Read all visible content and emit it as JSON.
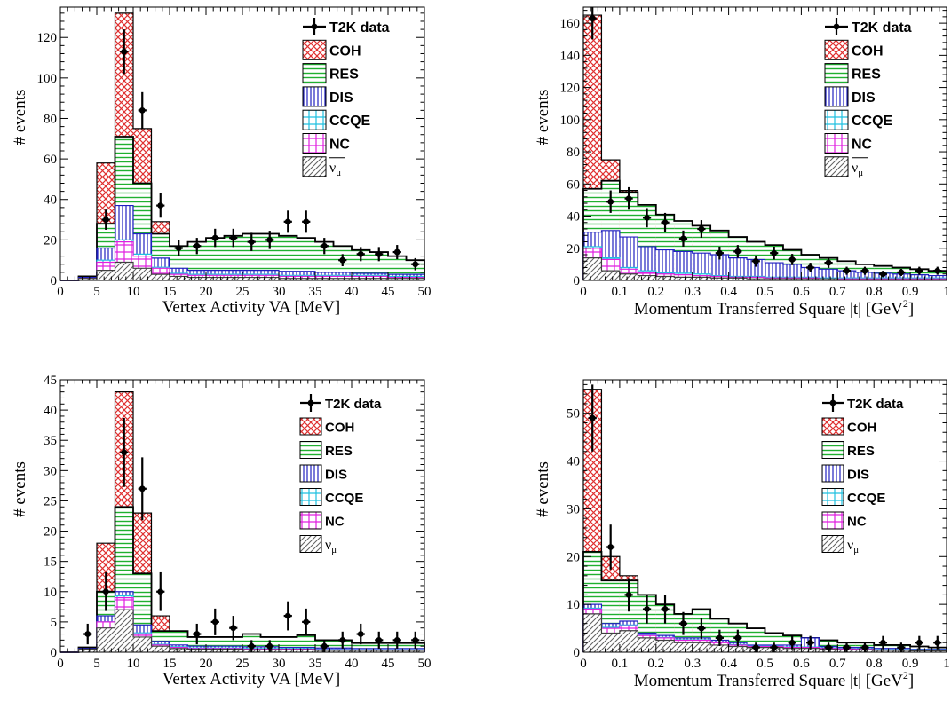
{
  "legend": {
    "data": "T2K data",
    "coh": "COH",
    "res": "RES",
    "dis": "DIS",
    "ccqe": "CCQE",
    "nc": "NC",
    "nubar": "ν̄μ",
    "nu": "νμ"
  },
  "colors": {
    "coh": "#e03030",
    "res": "#20b030",
    "dis": "#2020c0",
    "ccqe": "#20c0e0",
    "nc": "#e020e0",
    "nu": "#606060",
    "data": "#000000"
  },
  "chart_data": [
    {
      "id": "tl",
      "type": "stacked-histogram",
      "xlabel": "Vertex Activity VA [MeV]",
      "ylabel": "# events",
      "xlim": [
        0,
        50
      ],
      "ylim": [
        0,
        135
      ],
      "xticks": [
        0,
        5,
        10,
        15,
        20,
        25,
        30,
        35,
        40,
        45,
        50
      ],
      "yticks": [
        0,
        20,
        40,
        60,
        80,
        100,
        120
      ],
      "bin_edges": [
        0,
        2.5,
        5,
        7.5,
        10,
        12.5,
        15,
        17.5,
        20,
        22.5,
        25,
        27.5,
        30,
        32.5,
        35,
        37.5,
        40,
        42.5,
        45,
        47.5,
        50
      ],
      "stack_totals": {
        "nu": [
          0,
          1,
          5,
          9,
          6,
          3,
          2,
          1.5,
          1.5,
          1.5,
          1.5,
          1.5,
          1,
          1,
          1,
          1,
          1,
          1,
          1,
          1
        ],
        "nc": [
          0,
          1,
          9,
          19,
          12,
          6,
          3,
          2.5,
          2.5,
          2.5,
          2.5,
          2.5,
          2,
          2,
          2,
          2,
          2,
          2,
          1.5,
          1.5
        ],
        "ccqe": [
          0,
          1,
          10,
          20,
          13,
          6.5,
          3.5,
          3,
          3,
          3,
          3,
          3,
          2.5,
          2.5,
          2.5,
          2.5,
          2.5,
          2.5,
          2,
          2
        ],
        "dis": [
          0,
          1.5,
          16,
          37,
          23,
          11,
          6,
          5,
          5,
          5,
          5,
          5,
          4.5,
          4.5,
          4,
          4,
          3.5,
          3.5,
          3,
          3
        ],
        "res": [
          0,
          2,
          28,
          71,
          48,
          23,
          17,
          19,
          21,
          22,
          23,
          23,
          22,
          21,
          19,
          17,
          15,
          14,
          12,
          10
        ],
        "coh": [
          0,
          2,
          58,
          132,
          75,
          29,
          17,
          19,
          21,
          22,
          23,
          23,
          22,
          21,
          19,
          17,
          15,
          14,
          12,
          10
        ]
      },
      "data_points": {
        "x": [
          6.25,
          8.75,
          11.25,
          13.75,
          16.25,
          18.75,
          21.25,
          23.75,
          26.25,
          28.75,
          31.25,
          33.75,
          36.25,
          38.75,
          41.25,
          43.75,
          46.25,
          48.75
        ],
        "y": [
          30,
          113,
          84,
          37,
          16,
          17,
          21,
          21,
          19,
          20,
          29,
          29,
          17,
          10,
          13,
          13,
          14,
          8
        ],
        "err": [
          5,
          11,
          9,
          6,
          4,
          4,
          4.5,
          4.5,
          4.5,
          4.5,
          5.5,
          5.5,
          4,
          3,
          3.5,
          3.5,
          3.5,
          3
        ]
      },
      "legend_style": "large",
      "nu_label": "nubar"
    },
    {
      "id": "tr",
      "type": "stacked-histogram",
      "xlabel": "Momentum Transferred Square |t| [GeV²]",
      "ylabel": "# events",
      "xlim": [
        0,
        1
      ],
      "ylim": [
        0,
        170
      ],
      "xticks": [
        0,
        0.1,
        0.2,
        0.3,
        0.4,
        0.5,
        0.6,
        0.7,
        0.8,
        0.9,
        1
      ],
      "xticklabels": [
        "0",
        "0.1",
        "0.2",
        "0.3",
        "0.4",
        "0.5",
        "0.6",
        "0.7",
        "0.8",
        "0.9",
        "1"
      ],
      "yticks": [
        0,
        20,
        40,
        60,
        80,
        100,
        120,
        140,
        160
      ],
      "bin_edges": [
        0,
        0.05,
        0.1,
        0.15,
        0.2,
        0.25,
        0.3,
        0.35,
        0.4,
        0.45,
        0.5,
        0.55,
        0.6,
        0.65,
        0.7,
        0.75,
        0.8,
        0.85,
        0.9,
        0.95,
        1.0
      ],
      "stack_totals": {
        "nu": [
          14,
          6,
          4,
          3,
          2.5,
          2,
          2,
          1.5,
          1.5,
          1,
          1,
          1,
          1,
          1,
          0.5,
          0.5,
          0.5,
          0.5,
          0.5,
          0.5
        ],
        "nc": [
          20,
          13,
          7,
          5,
          4,
          3.5,
          3,
          2.5,
          2,
          2,
          1.5,
          1.5,
          1.5,
          1,
          1,
          1,
          1,
          1,
          1,
          1
        ],
        "ccqe": [
          21,
          14,
          8,
          6,
          5,
          4.5,
          4,
          3,
          2.5,
          2.5,
          2,
          2,
          2,
          1.5,
          1.5,
          1.5,
          1.5,
          1.5,
          1.5,
          1.5
        ],
        "dis": [
          30,
          31,
          27,
          21,
          19,
          18,
          17,
          16,
          14,
          13,
          11,
          10,
          8,
          7,
          6,
          5,
          4.5,
          4,
          3.5,
          3
        ],
        "res": [
          57,
          62,
          55,
          47,
          41,
          37,
          34,
          31,
          27,
          24,
          22,
          19,
          16,
          14,
          12,
          10,
          9,
          8,
          7,
          6
        ],
        "coh": [
          165,
          75,
          56,
          47,
          41,
          37,
          34,
          31,
          27,
          24,
          22,
          19,
          16,
          14,
          12,
          10,
          9,
          8,
          7,
          6
        ]
      },
      "data_points": {
        "x": [
          0.025,
          0.075,
          0.125,
          0.175,
          0.225,
          0.275,
          0.325,
          0.375,
          0.425,
          0.475,
          0.525,
          0.575,
          0.625,
          0.675,
          0.725,
          0.775,
          0.825,
          0.875,
          0.925,
          0.975
        ],
        "y": [
          163,
          49,
          51,
          39,
          36,
          26,
          32,
          17,
          18,
          12,
          17,
          13,
          8,
          11,
          6,
          6,
          4,
          5,
          6,
          6
        ],
        "err": [
          13,
          7,
          7,
          6,
          6,
          5,
          5.5,
          4,
          4,
          3.5,
          4,
          3.5,
          3,
          3.2,
          2.5,
          2.5,
          2,
          2.2,
          2.5,
          2.5
        ]
      },
      "legend_style": "large",
      "nu_label": "nubar"
    },
    {
      "id": "bl",
      "type": "stacked-histogram",
      "xlabel": "Vertex Activity VA [MeV]",
      "ylabel": "# events",
      "xlim": [
        0,
        50
      ],
      "ylim": [
        0,
        45
      ],
      "xticks": [
        0,
        5,
        10,
        15,
        20,
        25,
        30,
        35,
        40,
        45,
        50
      ],
      "yticks": [
        0,
        5,
        10,
        15,
        20,
        25,
        30,
        35,
        40,
        45
      ],
      "bin_edges": [
        0,
        2.5,
        5,
        7.5,
        10,
        12.5,
        15,
        17.5,
        20,
        22.5,
        25,
        27.5,
        30,
        32.5,
        35,
        37.5,
        40,
        42.5,
        45,
        47.5,
        50
      ],
      "stack_totals": {
        "nu": [
          0,
          0.5,
          4,
          7,
          2.5,
          1,
          0.6,
          0.5,
          0.5,
          0.5,
          0.4,
          0.4,
          0.4,
          0.4,
          0.3,
          0.3,
          0.3,
          0.3,
          0.3,
          0.3
        ],
        "nc": [
          0,
          0.5,
          5,
          9,
          3,
          1.2,
          0.8,
          0.6,
          0.6,
          0.6,
          0.5,
          0.5,
          0.5,
          0.5,
          0.4,
          0.4,
          0.4,
          0.4,
          0.4,
          0.4
        ],
        "ccqe": [
          0,
          0.5,
          5,
          9.3,
          3.2,
          1.3,
          0.9,
          0.7,
          0.7,
          0.7,
          0.6,
          0.6,
          0.6,
          0.6,
          0.5,
          0.5,
          0.5,
          0.5,
          0.5,
          0.5
        ],
        "dis": [
          0,
          0.6,
          6,
          10,
          4.5,
          1.8,
          1.2,
          1,
          1,
          1,
          0.9,
          0.9,
          0.8,
          0.8,
          0.7,
          0.7,
          0.6,
          0.6,
          0.6,
          0.6
        ],
        "res": [
          0,
          0.8,
          10,
          24,
          13,
          3.5,
          3.5,
          2.5,
          2.5,
          2.5,
          3,
          2.5,
          2.5,
          2.8,
          2,
          2,
          1.5,
          1.5,
          1.5,
          1.5
        ],
        "coh": [
          0,
          0.8,
          18,
          43,
          23,
          6,
          3.5,
          2.5,
          2.5,
          2.5,
          3,
          2.5,
          2.5,
          2.8,
          2,
          2,
          1.5,
          1.5,
          1.5,
          1.5
        ]
      },
      "data_points": {
        "x": [
          3.75,
          6.25,
          8.75,
          11.25,
          13.75,
          18.75,
          21.25,
          23.75,
          26.25,
          28.75,
          31.25,
          33.75,
          36.25,
          38.75,
          41.25,
          43.75,
          46.25,
          48.75
        ],
        "y": [
          3,
          10,
          33,
          27,
          10,
          3,
          5,
          4,
          1,
          1,
          6,
          5,
          1,
          2,
          3,
          2,
          2,
          2
        ],
        "err": [
          1.7,
          3.2,
          5.7,
          5.2,
          3.2,
          1.7,
          2.2,
          2,
          1,
          1,
          2.4,
          2.2,
          1,
          1.4,
          1.7,
          1.4,
          1.4,
          1.4
        ]
      },
      "legend_style": "small",
      "nu_label": "nu"
    },
    {
      "id": "br",
      "type": "stacked-histogram",
      "xlabel": "Momentum Transferred Square |t| [GeV²]",
      "ylabel": "# events",
      "xlim": [
        0,
        1
      ],
      "ylim": [
        0,
        57
      ],
      "xticks": [
        0,
        0.1,
        0.2,
        0.3,
        0.4,
        0.5,
        0.6,
        0.7,
        0.8,
        0.9,
        1
      ],
      "xticklabels": [
        "0",
        "0.1",
        "0.2",
        "0.3",
        "0.4",
        "0.5",
        "0.6",
        "0.7",
        "0.8",
        "0.9",
        "1"
      ],
      "yticks": [
        0,
        10,
        20,
        30,
        40,
        50
      ],
      "bin_edges": [
        0,
        0.05,
        0.1,
        0.15,
        0.2,
        0.25,
        0.3,
        0.35,
        0.4,
        0.45,
        0.5,
        0.55,
        0.6,
        0.65,
        0.7,
        0.75,
        0.8,
        0.85,
        0.9,
        0.95,
        1.0
      ],
      "stack_totals": {
        "nu": [
          8,
          4,
          4.5,
          3,
          2.5,
          2,
          2,
          1.5,
          1.2,
          1,
          1,
          0.8,
          0.8,
          0.6,
          0.5,
          0.5,
          0.4,
          0.4,
          0.3,
          0.3
        ],
        "nc": [
          9,
          5,
          5.5,
          3.5,
          3,
          2.5,
          2.5,
          2,
          1.5,
          1.2,
          1.2,
          1,
          1,
          0.8,
          0.7,
          0.6,
          0.5,
          0.5,
          0.4,
          0.4
        ],
        "ccqe": [
          9.2,
          5.2,
          5.7,
          3.6,
          3.1,
          2.6,
          2.6,
          2.1,
          1.6,
          1.3,
          1.3,
          1.1,
          1.1,
          0.9,
          0.8,
          0.7,
          0.6,
          0.6,
          0.5,
          0.5
        ],
        "dis": [
          10,
          6,
          6.5,
          4,
          3.5,
          3,
          3,
          2.5,
          2,
          1.5,
          1.5,
          1.5,
          3,
          1.2,
          1,
          1,
          0.8,
          0.8,
          0.6,
          0.6
        ],
        "res": [
          21,
          15,
          15,
          12,
          10,
          8,
          9,
          7,
          6,
          5,
          4,
          3.5,
          3,
          2.5,
          2,
          2,
          1.5,
          1.5,
          1.2,
          1
        ],
        "coh": [
          55,
          20,
          16,
          12,
          10,
          8,
          9,
          7,
          6,
          5,
          4,
          3.5,
          3,
          2.5,
          2,
          2,
          1.5,
          1.5,
          1.2,
          1
        ]
      },
      "data_points": {
        "x": [
          0.025,
          0.075,
          0.125,
          0.175,
          0.225,
          0.275,
          0.325,
          0.375,
          0.425,
          0.475,
          0.525,
          0.575,
          0.625,
          0.675,
          0.725,
          0.775,
          0.825,
          0.875,
          0.925,
          0.975
        ],
        "y": [
          49,
          22,
          12,
          9,
          9,
          6,
          5,
          3,
          3,
          1,
          1,
          2,
          2,
          1,
          1,
          1,
          2,
          1,
          2,
          2
        ],
        "err": [
          7,
          4.7,
          3.5,
          3,
          3,
          2.4,
          2.2,
          1.7,
          1.7,
          1,
          1,
          1.4,
          1.4,
          1,
          1,
          1,
          1.4,
          1,
          1.4,
          1.4
        ]
      },
      "legend_style": "small",
      "nu_label": "nu"
    }
  ]
}
